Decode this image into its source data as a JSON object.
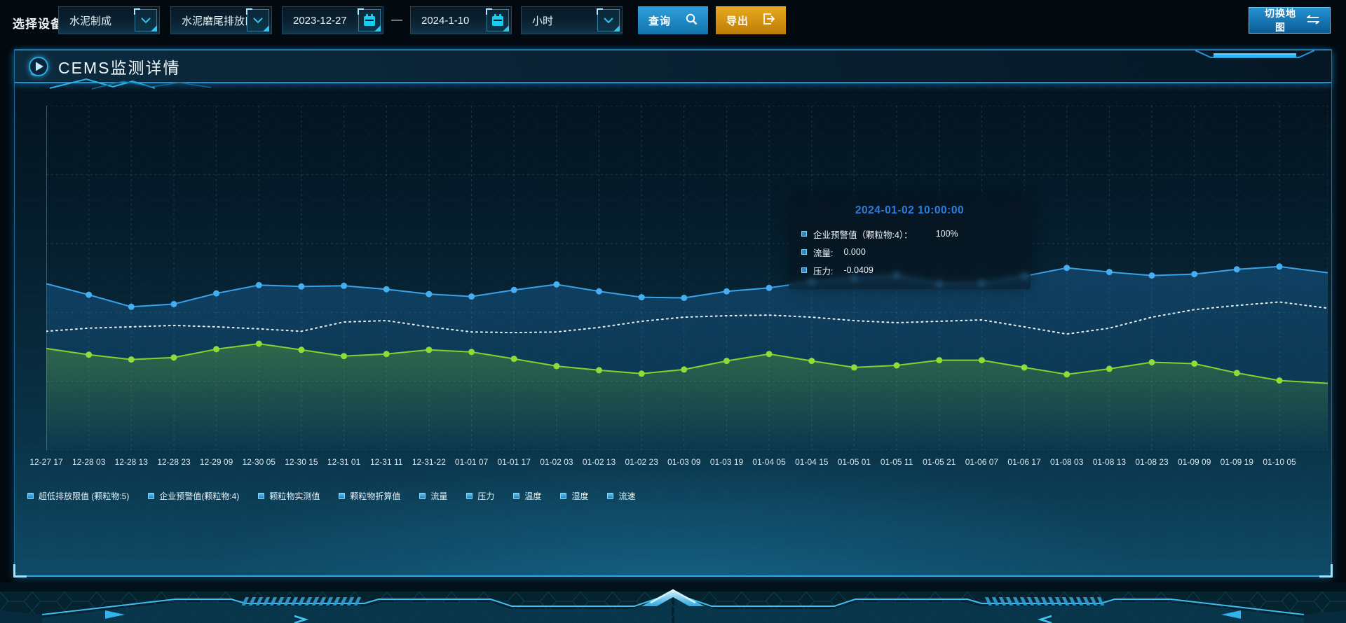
{
  "toolbar": {
    "device_label": "选择设备",
    "select_device_type": "水泥制成",
    "select_outlet": "水泥磨尾排放口",
    "date_start": "2023-12-27",
    "date_separator": "—",
    "date_end": "2024-1-10",
    "select_interval": "小时",
    "query_label": "查询",
    "export_label": "导出",
    "switch_map_label": "切换地图"
  },
  "panel": {
    "title": "CEMS监测详情"
  },
  "tooltip": {
    "title": "2024-01-02 10:00:00",
    "rows": [
      {
        "label": "企业预警值（颗粒物:4）：",
        "value": "100%"
      },
      {
        "label": "流量:",
        "value": "0.000"
      },
      {
        "label": "压力:",
        "value": "-0.0409"
      }
    ]
  },
  "colors": {
    "accent": "#2fa7e4",
    "tooltip_title": "#2b7de0",
    "query_button": "#1d86c2",
    "export_button": "#d8941a",
    "panel_border": "#176a9e"
  },
  "chart_data": {
    "type": "line",
    "title": "",
    "xlabel": "",
    "ylabel": "",
    "y_axis_labels_visible": false,
    "value_scale": "percent_of_plot_height_from_bottom",
    "grid": {
      "style": "dashed",
      "v_lines": 30,
      "h_rows": 5
    },
    "legend_position": "bottom-left",
    "x_labels": [
      "12-27 17",
      "12-28 03",
      "12-28 13",
      "12-28 23",
      "12-29 09",
      "12-30 05",
      "12-30 15",
      "12-31 01",
      "12-31 11",
      "12-31-22",
      "01-01 07",
      "01-01 17",
      "01-02 03",
      "01-02 13",
      "01-02 23",
      "01-03 09",
      "01-03 19",
      "01-04 05",
      "01-04 15",
      "01-05 01",
      "01-05 11",
      "01-05 21",
      "01-06 07",
      "01-06 17",
      "01-08 03",
      "01-08 13",
      "01-08 23",
      "01-09 09",
      "01-09 19",
      "01-10 05"
    ],
    "legend": [
      "超低排放限值 (颗粒物:5)",
      "企业预警值(颗粒物:4)",
      "颗粒物实测值",
      "颗粒物折算值",
      "流量",
      "压力",
      "温度",
      "湿度",
      "流速"
    ],
    "series": [
      {
        "name": "企业预警值(颗粒物:4)",
        "color": "#3aa2e8",
        "dot_color": "#45aef0",
        "line_style": "solid",
        "markers": true,
        "area_from": "rgba(30,112,175,0.40)",
        "area_to": "rgba(30,112,175,0.05)",
        "values_pct": [
          48.3,
          45.1,
          41.6,
          42.4,
          45.5,
          47.9,
          47.5,
          47.7,
          46.7,
          45.3,
          44.6,
          46.5,
          48.1,
          46.1,
          44.4,
          44.2,
          46.1,
          47.1,
          48.9,
          49.9,
          50.7,
          48.3,
          48.5,
          50.5,
          52.9,
          51.7,
          50.7,
          51.1,
          52.5,
          53.3
        ],
        "right_edge_pct": 51.5
      },
      {
        "name": "流量",
        "color": "#e9f2f6",
        "line_style": "dotted",
        "markers": false,
        "values_pct": [
          34.5,
          35.4,
          35.8,
          36.2,
          35.8,
          35.2,
          34.5,
          37.2,
          37.6,
          35.8,
          34.3,
          34.1,
          34.3,
          35.6,
          37.4,
          38.6,
          39.0,
          39.2,
          38.6,
          37.6,
          37.0,
          37.4,
          37.8,
          35.8,
          33.7,
          35.4,
          38.6,
          40.8,
          42.0,
          43.0
        ],
        "right_edge_pct": 41.2
      },
      {
        "name": "压力",
        "color": "#81d32f",
        "dot_color": "#8ade3a",
        "line_style": "solid",
        "markers": true,
        "area_from": "rgba(120,200,45,0.32)",
        "area_to": "rgba(120,200,45,0.0)",
        "values_pct": [
          29.5,
          27.7,
          26.3,
          26.9,
          29.3,
          30.9,
          29.1,
          27.3,
          27.9,
          29.1,
          28.5,
          26.5,
          24.4,
          23.2,
          22.2,
          23.4,
          25.9,
          27.9,
          25.9,
          24.0,
          24.6,
          26.1,
          26.1,
          24.0,
          22.0,
          23.6,
          25.5,
          25.1,
          22.4,
          20.2
        ],
        "right_edge_pct": 19.4
      }
    ]
  }
}
